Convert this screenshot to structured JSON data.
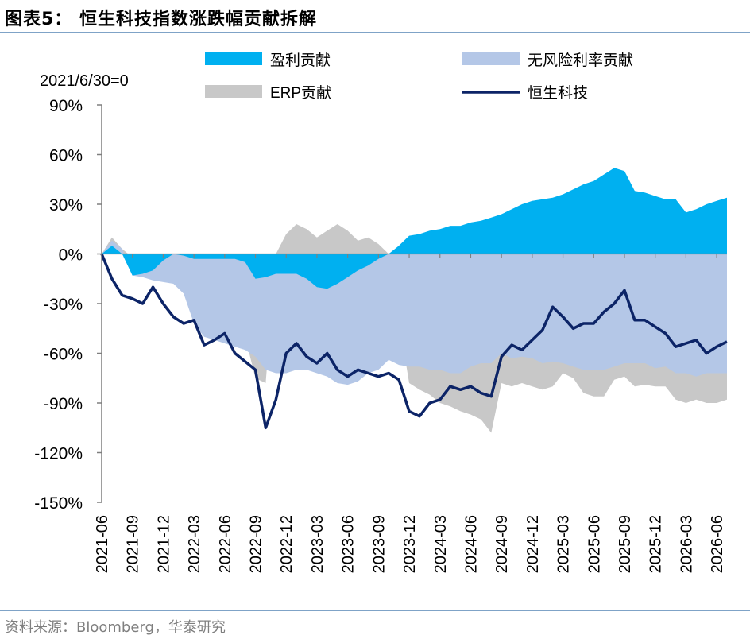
{
  "title": "图表5：  恒生科技指数涨跌幅贡献拆解",
  "source": "资料来源：Bloomberg，华泰研究",
  "colors": {
    "earnings": "#00b0f0",
    "riskfree": "#b4c7e7",
    "erp": "#c8c8c8",
    "index": "#0c2467"
  },
  "chart_data": {
    "type": "area",
    "note_label": "2021/6/30=0",
    "ylim": [
      -150,
      90
    ],
    "y_ticks": [
      "90%",
      "60%",
      "30%",
      "0%",
      "-30%",
      "-60%",
      "-90%",
      "-120%",
      "-150%"
    ],
    "x_ticks": [
      "2021-06",
      "2021-09",
      "2021-12",
      "2022-03",
      "2022-06",
      "2022-09",
      "2022-12",
      "2023-03",
      "2023-06",
      "2023-09",
      "2023-12",
      "2024-03",
      "2024-06",
      "2024-09",
      "2024-12",
      "2025-03",
      "2025-06",
      "2025-09",
      "2025-12",
      "2026-03",
      "2026-06"
    ],
    "legend": {
      "earnings": "盈利贡献",
      "riskfree": "无风险利率贡献",
      "erp": "ERP贡献",
      "index": "恒生科技"
    },
    "x": [
      "2021-06",
      "2021-07",
      "2021-08",
      "2021-09",
      "2021-10",
      "2021-11",
      "2021-12",
      "2022-01",
      "2022-02",
      "2022-03",
      "2022-04",
      "2022-05",
      "2022-06",
      "2022-07",
      "2022-08",
      "2022-09",
      "2022-10",
      "2022-11",
      "2022-12",
      "2023-01",
      "2023-02",
      "2023-03",
      "2023-04",
      "2023-05",
      "2023-06",
      "2023-07",
      "2023-08",
      "2023-09",
      "2023-10",
      "2023-11",
      "2023-12",
      "2024-01",
      "2024-02",
      "2024-03",
      "2024-04",
      "2024-05",
      "2024-06",
      "2024-07",
      "2024-08",
      "2024-09",
      "2024-10",
      "2024-11",
      "2024-12",
      "2025-01",
      "2025-02",
      "2025-03",
      "2025-04",
      "2025-05",
      "2025-06",
      "2025-07",
      "2025-08",
      "2025-09",
      "2025-10",
      "2025-11",
      "2025-12",
      "2026-01",
      "2026-02",
      "2026-03",
      "2026-04",
      "2026-05",
      "2026-06",
      "2026-07"
    ],
    "series": [
      {
        "name": "盈利贡献",
        "values": [
          0,
          5,
          0,
          -13,
          -12,
          -10,
          -4,
          0,
          -1,
          -3,
          -3,
          -3,
          -3,
          -3,
          -5,
          -15,
          -14,
          -12,
          -12,
          -12,
          -15,
          -20,
          -21,
          -18,
          -14,
          -10,
          -7,
          -3,
          0,
          5,
          11,
          12,
          14,
          15,
          17,
          17,
          19,
          20,
          22,
          24,
          27,
          30,
          32,
          33,
          34,
          36,
          39,
          42,
          44,
          48,
          52,
          50,
          38,
          37,
          35,
          33,
          33,
          25,
          27,
          30,
          32,
          34
        ]
      },
      {
        "name": "无风险利率贡献",
        "values": [
          0,
          8,
          3,
          -13,
          -14,
          -16,
          -17,
          -18,
          -24,
          -42,
          -50,
          -52,
          -54,
          -56,
          -58,
          -62,
          -70,
          -72,
          -72,
          -70,
          -70,
          -72,
          -74,
          -78,
          -79,
          -77,
          -72,
          -70,
          -64,
          -67,
          -68,
          -68,
          -70,
          -70,
          -72,
          -72,
          -68,
          -66,
          -66,
          -60,
          -63,
          -62,
          -63,
          -66,
          -65,
          -66,
          -68,
          -70,
          -70,
          -70,
          -68,
          -66,
          -66,
          -66,
          -69,
          -68,
          -72,
          -72,
          -74,
          -72,
          -72,
          -72
        ]
      },
      {
        "name": "ERP贡献",
        "values": [
          0,
          10,
          3,
          -2,
          -2,
          -1,
          -2,
          -3,
          -8,
          -40,
          -30,
          -40,
          -50,
          -40,
          -50,
          -75,
          -78,
          0,
          12,
          18,
          15,
          10,
          14,
          18,
          14,
          8,
          10,
          6,
          0,
          -40,
          -78,
          -82,
          -85,
          -90,
          -92,
          -95,
          -97,
          -100,
          -108,
          -78,
          -80,
          -78,
          -80,
          -82,
          -80,
          -72,
          -75,
          -84,
          -86,
          -86,
          -76,
          -74,
          -80,
          -79,
          -80,
          -80,
          -88,
          -90,
          -88,
          -90,
          -90,
          -88
        ]
      },
      {
        "name": "恒生科技",
        "values": [
          0,
          -15,
          -25,
          -27,
          -30,
          -20,
          -30,
          -38,
          -42,
          -40,
          -55,
          -52,
          -48,
          -60,
          -65,
          -70,
          -105,
          -88,
          -60,
          -54,
          -62,
          -66,
          -60,
          -70,
          -74,
          -70,
          -72,
          -74,
          -72,
          -76,
          -95,
          -98,
          -90,
          -88,
          -80,
          -82,
          -80,
          -84,
          -86,
          -62,
          -55,
          -58,
          -52,
          -46,
          -32,
          -38,
          -45,
          -42,
          -42,
          -35,
          -30,
          -22,
          -40,
          -40,
          -44,
          -48,
          -56,
          -54,
          -52,
          -60,
          -56,
          -53
        ]
      }
    ]
  }
}
